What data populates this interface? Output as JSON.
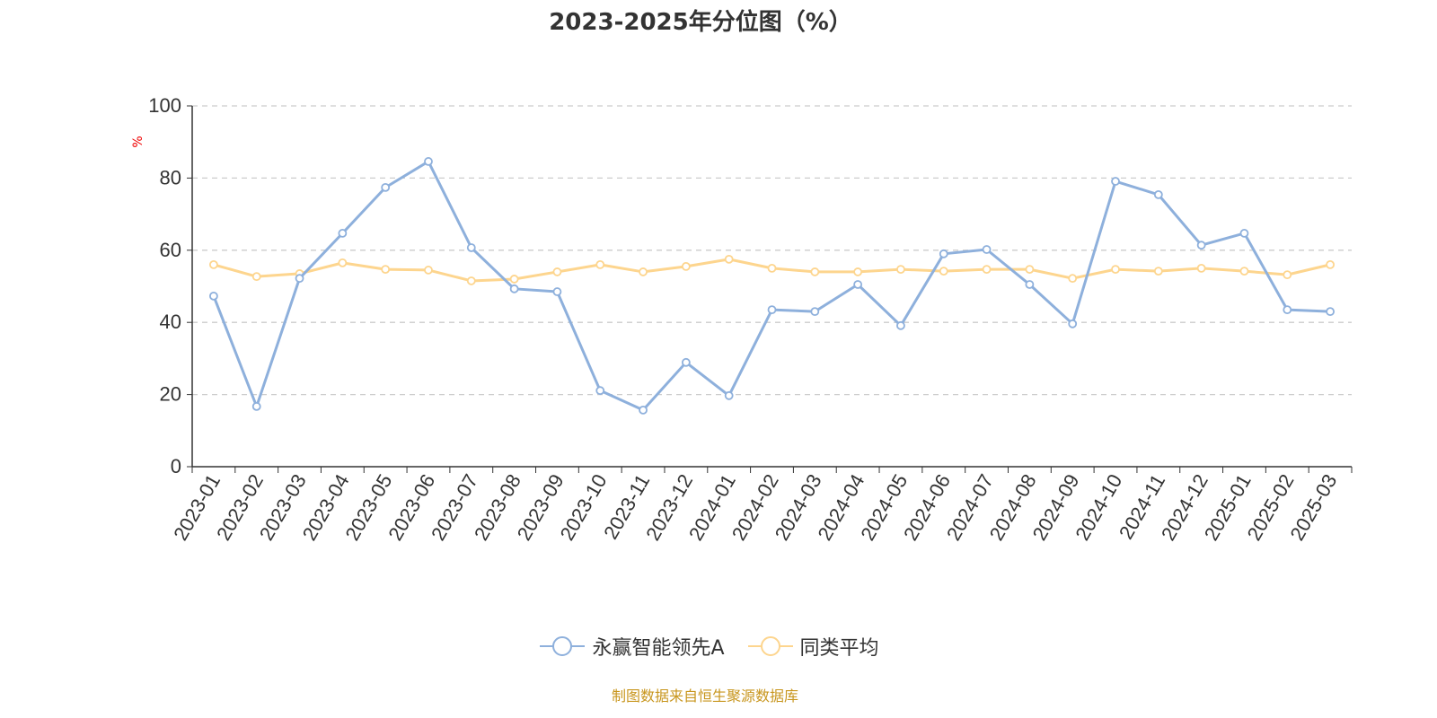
{
  "chart_data": {
    "type": "line",
    "title": "2023-2025年分位图（%）",
    "ylabel": "%",
    "xlabel": "",
    "ylim": [
      0,
      100
    ],
    "yticks": [
      0,
      20,
      40,
      60,
      80,
      100
    ],
    "grid": true,
    "legend_position": "bottom",
    "categories": [
      "2023-01",
      "2023-02",
      "2023-03",
      "2023-04",
      "2023-05",
      "2023-06",
      "2023-07",
      "2023-08",
      "2023-09",
      "2023-10",
      "2023-11",
      "2023-12",
      "2024-01",
      "2024-02",
      "2024-03",
      "2024-04",
      "2024-05",
      "2024-06",
      "2024-07",
      "2024-08",
      "2024-09",
      "2024-10",
      "2024-11",
      "2024-12",
      "2025-01",
      "2025-02",
      "2025-03"
    ],
    "series": [
      {
        "name": "永赢智能领先A",
        "color": "#8eb0dc",
        "values": [
          47.3,
          16.7,
          52.2,
          64.7,
          77.4,
          84.6,
          60.7,
          49.3,
          48.5,
          21.1,
          15.7,
          28.9,
          19.7,
          43.5,
          43.0,
          50.5,
          39.1,
          59.0,
          60.2,
          50.5,
          39.6,
          79.1,
          75.4,
          61.4,
          64.7,
          43.5,
          43.0
        ]
      },
      {
        "name": "同类平均",
        "color": "#fdd58e",
        "values": [
          56.0,
          52.7,
          53.5,
          56.5,
          54.7,
          54.5,
          51.5,
          52.0,
          54.0,
          56.0,
          54.0,
          55.5,
          57.5,
          55.0,
          54.0,
          54.0,
          54.7,
          54.2,
          54.7,
          54.7,
          52.2,
          54.7,
          54.2,
          55.0,
          54.2,
          53.2,
          56.0
        ]
      }
    ]
  },
  "source_note": "制图数据来自恒生聚源数据库"
}
